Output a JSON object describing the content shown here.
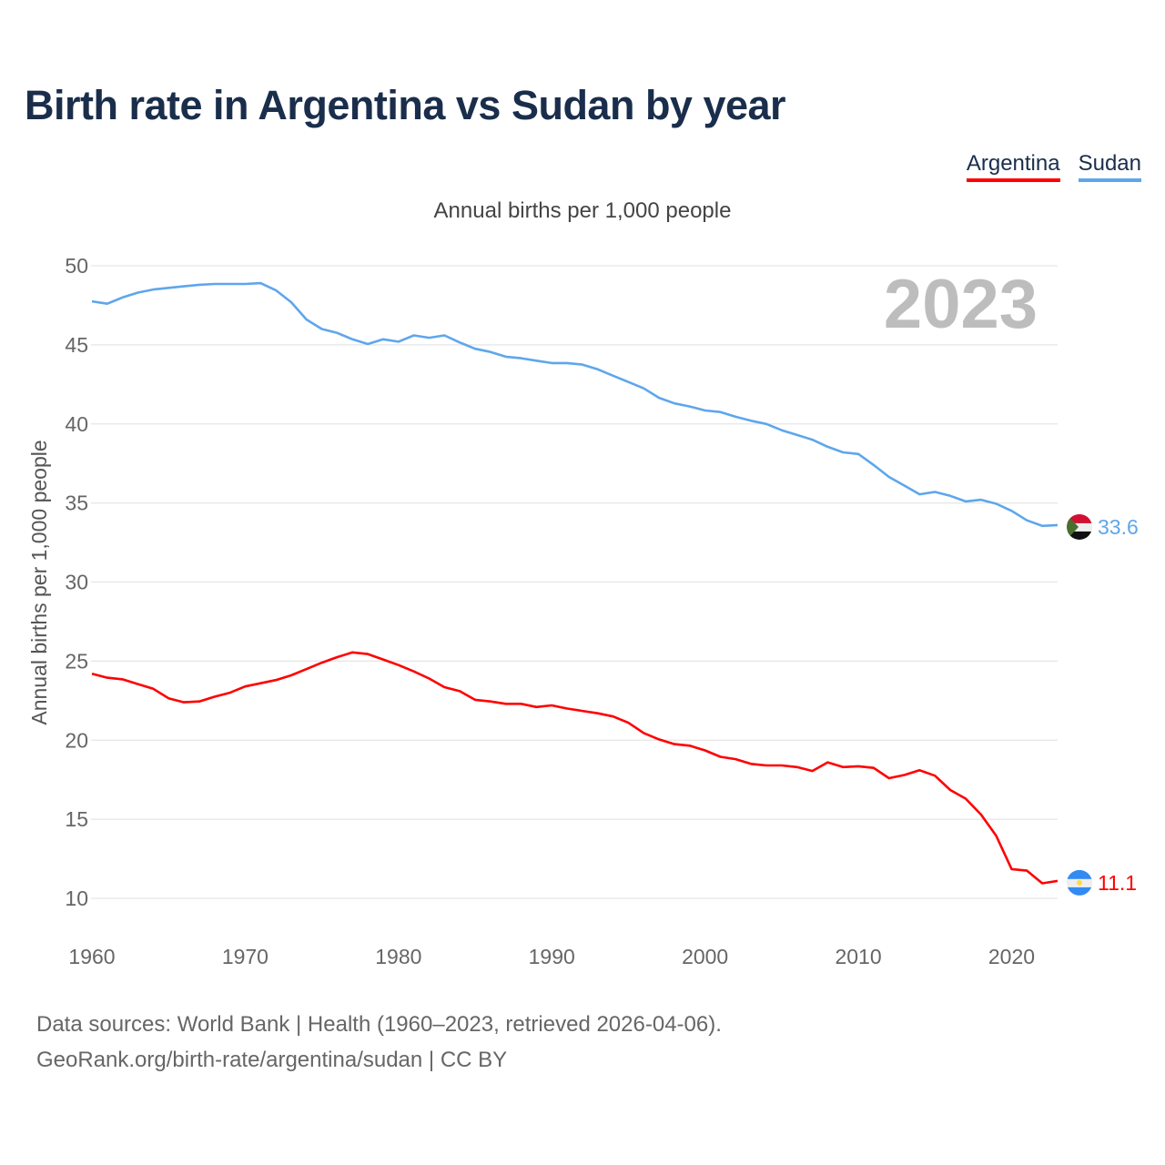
{
  "title": "Birth rate in Argentina vs Sudan by year",
  "subtitle": "Annual births per 1,000 people",
  "year_watermark": "2023",
  "footer": {
    "line1": "Data sources: World Bank | Health (1960–2023, retrieved 2026-04-06).",
    "line2": "GeoRank.org/birth-rate/argentina/sudan | CC BY"
  },
  "chart_data": {
    "type": "line",
    "title": "Birth rate in Argentina vs Sudan by year",
    "xlabel": "",
    "ylabel": "Annual births per 1,000 people",
    "xlim": [
      1960,
      2023
    ],
    "ylim": [
      10,
      50
    ],
    "xticks": [
      "1960",
      "1970",
      "1980",
      "1990",
      "2000",
      "2010",
      "2020"
    ],
    "yticks": [
      "10",
      "15",
      "20",
      "25",
      "30",
      "35",
      "40",
      "45",
      "50"
    ],
    "grid": true,
    "legend_position": "top-right",
    "x": [
      1960,
      1961,
      1962,
      1963,
      1964,
      1965,
      1966,
      1967,
      1968,
      1969,
      1970,
      1971,
      1972,
      1973,
      1974,
      1975,
      1976,
      1977,
      1978,
      1979,
      1980,
      1981,
      1982,
      1983,
      1984,
      1985,
      1986,
      1987,
      1988,
      1989,
      1990,
      1991,
      1992,
      1993,
      1994,
      1995,
      1996,
      1997,
      1998,
      1999,
      2000,
      2001,
      2002,
      2003,
      2004,
      2005,
      2006,
      2007,
      2008,
      2009,
      2010,
      2011,
      2012,
      2013,
      2014,
      2015,
      2016,
      2017,
      2018,
      2019,
      2020,
      2021,
      2022,
      2023
    ],
    "series": [
      {
        "name": "Argentina",
        "color": "#ff0000",
        "end_label": "11.1",
        "values": [
          24.2,
          23.95,
          23.85,
          23.55,
          23.25,
          22.65,
          22.4,
          22.45,
          22.75,
          23.0,
          23.4,
          23.6,
          23.8,
          24.1,
          24.5,
          24.9,
          25.25,
          25.55,
          25.45,
          25.1,
          24.75,
          24.35,
          23.9,
          23.35,
          23.1,
          22.55,
          22.45,
          22.3,
          22.3,
          22.1,
          22.2,
          22.0,
          21.85,
          21.7,
          21.5,
          21.1,
          20.45,
          20.05,
          19.75,
          19.65,
          19.35,
          18.95,
          18.8,
          18.5,
          18.4,
          18.4,
          18.3,
          18.05,
          18.6,
          18.3,
          18.35,
          18.25,
          17.6,
          17.8,
          18.1,
          17.75,
          16.85,
          16.3,
          15.3,
          13.95,
          11.85,
          11.75,
          10.95,
          11.1
        ]
      },
      {
        "name": "Sudan",
        "color": "#5ea6ec",
        "end_label": "33.6",
        "values": [
          47.75,
          47.6,
          48.0,
          48.3,
          48.5,
          48.6,
          48.7,
          48.8,
          48.85,
          48.85,
          48.85,
          48.9,
          48.45,
          47.7,
          46.6,
          46.0,
          45.75,
          45.35,
          45.05,
          45.35,
          45.2,
          45.6,
          45.45,
          45.6,
          45.15,
          44.75,
          44.55,
          44.25,
          44.15,
          44.0,
          43.85,
          43.85,
          43.75,
          43.45,
          43.05,
          42.65,
          42.25,
          41.65,
          41.3,
          41.1,
          40.85,
          40.75,
          40.45,
          40.2,
          40.0,
          39.6,
          39.3,
          39.0,
          38.55,
          38.2,
          38.1,
          37.4,
          36.65,
          36.1,
          35.55,
          35.7,
          35.45,
          35.1,
          35.2,
          34.95,
          34.5,
          33.9,
          33.55,
          33.6
        ]
      }
    ]
  }
}
